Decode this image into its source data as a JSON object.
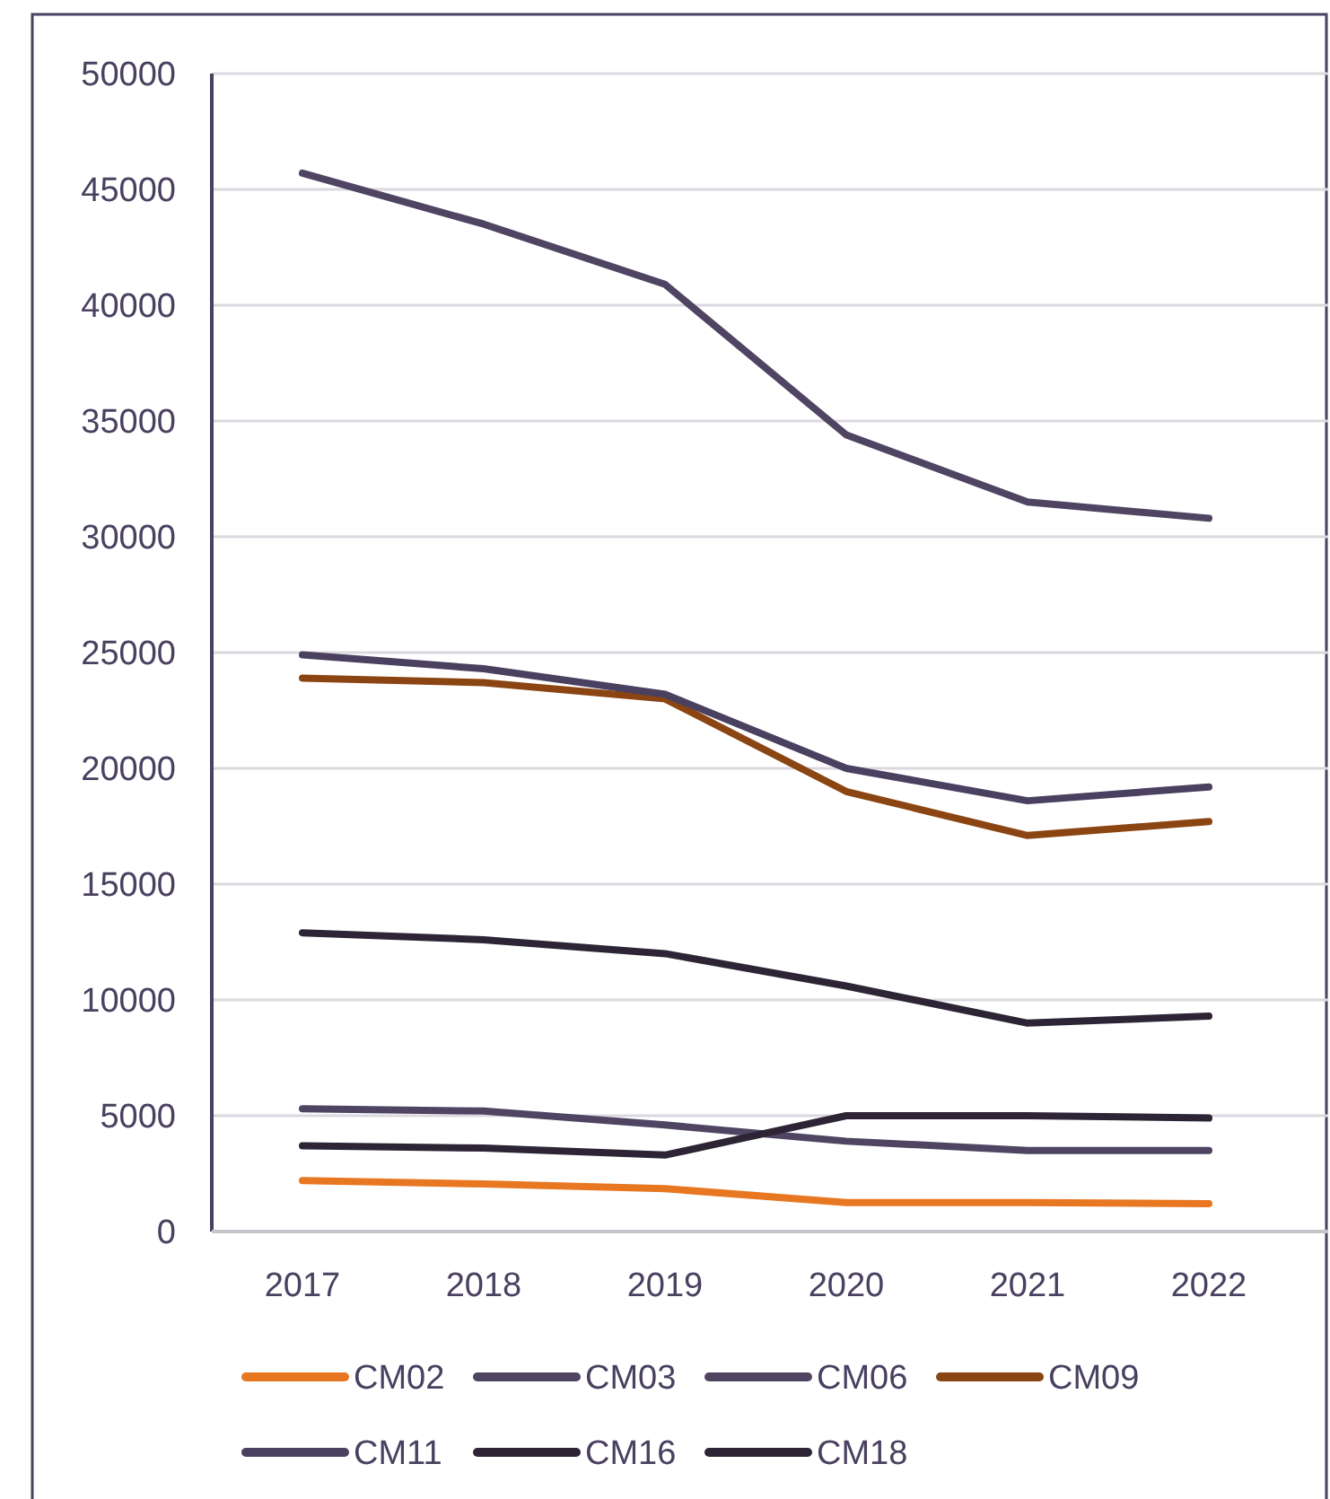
{
  "chart_data": {
    "type": "line",
    "categories": [
      "2017",
      "2018",
      "2019",
      "2020",
      "2021",
      "2022"
    ],
    "series": [
      {
        "name": "CM02",
        "color": "#e87722",
        "values": [
          2200,
          2050,
          1850,
          1250,
          1250,
          1200
        ]
      },
      {
        "name": "CM03",
        "color": "#4f4563",
        "values": [
          5300,
          5200,
          4600,
          3900,
          3500,
          3500
        ]
      },
      {
        "name": "CM06",
        "color": "#4f4563",
        "values": [
          45700,
          43500,
          40900,
          34400,
          31500,
          30800
        ]
      },
      {
        "name": "CM09",
        "color": "#8b4513",
        "values": [
          23900,
          23700,
          23000,
          19000,
          17100,
          17700
        ]
      },
      {
        "name": "CM11",
        "color": "#4a4060",
        "values": [
          24900,
          24300,
          23200,
          20000,
          18600,
          19200
        ]
      },
      {
        "name": "CM16",
        "color": "#2d2536",
        "values": [
          12900,
          12600,
          12000,
          10600,
          9000,
          9300
        ]
      },
      {
        "name": "CM18",
        "color": "#2d2536",
        "values": [
          3700,
          3600,
          3300,
          5000,
          5000,
          4900
        ]
      }
    ],
    "ylim": [
      0,
      50000
    ],
    "yticks": [
      0,
      5000,
      10000,
      15000,
      20000,
      25000,
      30000,
      35000,
      40000,
      45000,
      50000
    ],
    "grid": "y",
    "legend": "bottom",
    "marker": "none",
    "line_style": "solid"
  }
}
